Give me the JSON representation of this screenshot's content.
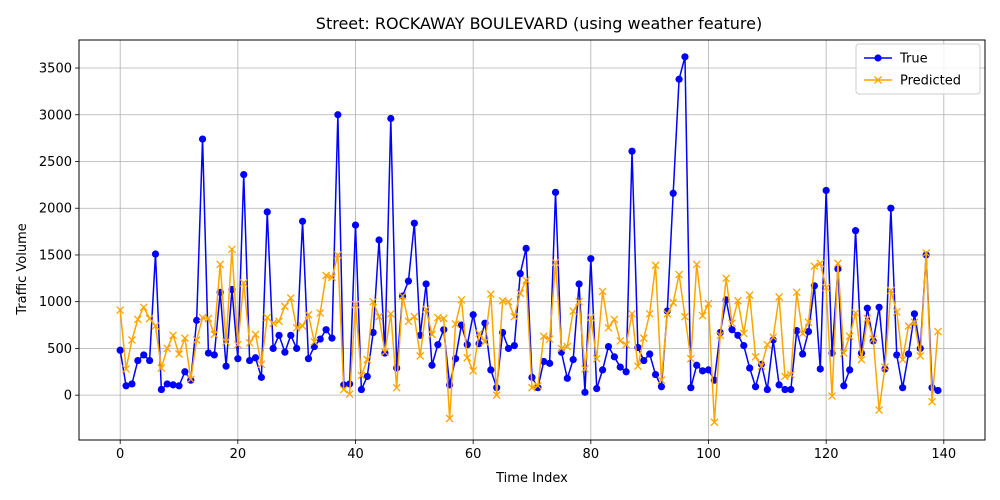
{
  "chart_data": {
    "type": "line",
    "title": "Street: ROCKAWAY BOULEVARD (using weather feature)",
    "xlabel": "Time Index",
    "ylabel": "Traffic Volume",
    "xlim": [
      -7,
      147
    ],
    "ylim": [
      -480,
      3800
    ],
    "xticks": [
      0,
      20,
      40,
      60,
      80,
      100,
      120,
      140
    ],
    "yticks": [
      0,
      500,
      1000,
      1500,
      2000,
      2500,
      3000,
      3500
    ],
    "grid": true,
    "legend_position": "top-right",
    "series": [
      {
        "name": "True",
        "color": "#0000ff",
        "marker": "circle",
        "values": [
          480,
          100,
          120,
          370,
          430,
          370,
          1510,
          60,
          120,
          110,
          100,
          250,
          160,
          800,
          2740,
          450,
          430,
          1100,
          310,
          1130,
          390,
          2360,
          370,
          400,
          190,
          1960,
          500,
          640,
          460,
          640,
          500,
          1860,
          390,
          520,
          600,
          700,
          610,
          3000,
          110,
          120,
          1820,
          60,
          200,
          670,
          1660,
          450,
          2960,
          290,
          1060,
          1220,
          1840,
          640,
          1190,
          320,
          540,
          700,
          110,
          390,
          750,
          540,
          860,
          550,
          770,
          270,
          80,
          670,
          500,
          530,
          1300,
          1570,
          190,
          80,
          360,
          340,
          2170,
          460,
          180,
          380,
          1190,
          30,
          1460,
          70,
          270,
          520,
          410,
          300,
          250,
          2610,
          510,
          370,
          440,
          220,
          90,
          900,
          2160,
          3380,
          3620,
          80,
          320,
          260,
          270,
          160,
          670,
          1020,
          700,
          640,
          530,
          290,
          90,
          330,
          60,
          590,
          110,
          60,
          60,
          690,
          440,
          680,
          1170,
          280,
          2190,
          450,
          1350,
          100,
          270,
          1760,
          450,
          930,
          580,
          940,
          280,
          2000,
          430,
          80,
          440,
          870,
          500,
          1500,
          80,
          50
        ]
      },
      {
        "name": "Predicted",
        "color": "#ffa500",
        "marker": "x",
        "values": [
          910,
          280,
          590,
          810,
          940,
          820,
          740,
          290,
          500,
          640,
          440,
          610,
          170,
          590,
          830,
          820,
          650,
          1400,
          570,
          1560,
          540,
          1200,
          560,
          650,
          330,
          830,
          770,
          790,
          950,
          1040,
          720,
          740,
          860,
          570,
          880,
          1280,
          1260,
          1500,
          60,
          10,
          970,
          210,
          380,
          1000,
          840,
          460,
          870,
          80,
          1060,
          790,
          840,
          420,
          920,
          650,
          830,
          820,
          -250,
          760,
          1020,
          400,
          260,
          660,
          570,
          1080,
          0,
          1010,
          1000,
          840,
          1090,
          1230,
          80,
          100,
          630,
          600,
          1420,
          500,
          520,
          900,
          1000,
          280,
          830,
          390,
          1110,
          720,
          810,
          580,
          540,
          870,
          310,
          610,
          870,
          1390,
          160,
          870,
          990,
          1290,
          840,
          390,
          1400,
          850,
          980,
          -290,
          640,
          1250,
          770,
          1010,
          660,
          1070,
          410,
          310,
          540,
          620,
          1050,
          200,
          220,
          1100,
          660,
          780,
          1380,
          1410,
          1150,
          -10,
          1410,
          450,
          630,
          880,
          380,
          820,
          600,
          -160,
          300,
          1120,
          890,
          380,
          740,
          780,
          420,
          1520,
          -70,
          680
        ]
      }
    ]
  }
}
